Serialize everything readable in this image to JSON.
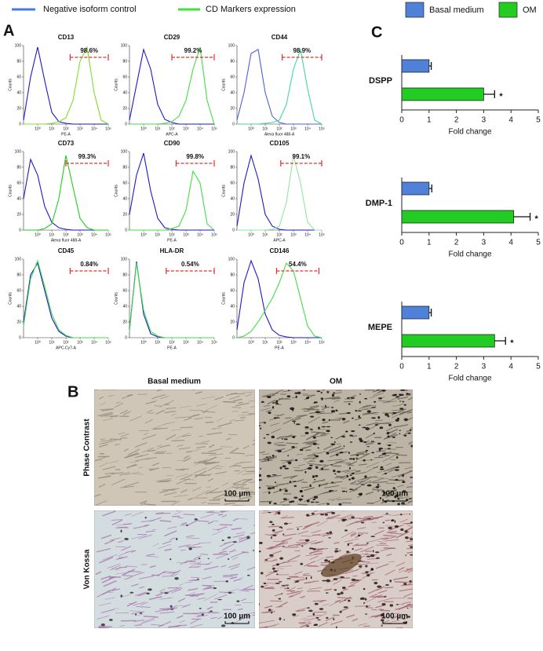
{
  "legends": [
    {
      "items": [
        {
          "label": "Negative isoform control",
          "color": "#4a7ae0"
        },
        {
          "label": "CD Markers expression",
          "color": "#44dd44"
        }
      ]
    },
    {
      "items": [
        {
          "label": "Basal medium",
          "color": "#4f81d9"
        },
        {
          "label": "OM",
          "color": "#22cc22"
        }
      ]
    }
  ],
  "panel_labels": [
    "A",
    "B",
    "C"
  ],
  "chart_data": [
    {
      "type": "line",
      "title": "CD13",
      "xlabel": "PE-A",
      "ylabel": "Counts",
      "annotation": "98.6%",
      "gate": {
        "x": [
          2.3,
          5
        ],
        "y": 85
      },
      "x": [
        -1,
        -0.5,
        0,
        0.5,
        1,
        1.5,
        2,
        2.5,
        3,
        3.5,
        4,
        4.5,
        5
      ],
      "series": [
        {
          "color": "#1a1acc",
          "values": [
            5,
            60,
            98,
            55,
            15,
            3,
            1,
            0,
            0,
            0,
            0,
            0,
            0
          ]
        },
        {
          "color": "#7fe02a",
          "values": [
            0,
            0,
            0,
            0,
            1,
            3,
            8,
            30,
            80,
            98,
            40,
            5,
            0
          ]
        }
      ],
      "xlim": [
        -1,
        5
      ],
      "xticks": [
        {
          "value": 0,
          "label": "10⁰"
        },
        {
          "value": 1,
          "label": "10¹"
        },
        {
          "value": 2,
          "label": "10²"
        },
        {
          "value": 3,
          "label": "10³"
        },
        {
          "value": 4,
          "label": "10⁴"
        },
        {
          "value": 5,
          "label": "10⁵"
        }
      ],
      "ylim": [
        0,
        100
      ],
      "yticks": [
        0,
        20,
        40,
        60,
        80,
        100
      ]
    },
    {
      "type": "line",
      "title": "CD29",
      "xlabel": "APC-A",
      "ylabel": "Counts",
      "annotation": "99.2%",
      "gate": {
        "x": [
          2,
          5
        ],
        "y": 85
      },
      "x": [
        -1,
        -0.5,
        0,
        0.5,
        1,
        1.5,
        2,
        2.5,
        3,
        3.5,
        4,
        4.5,
        5
      ],
      "series": [
        {
          "color": "#1a1acc",
          "values": [
            5,
            50,
            95,
            70,
            25,
            6,
            2,
            0,
            0,
            0,
            0,
            0,
            0
          ]
        },
        {
          "color": "#44dd44",
          "values": [
            0,
            0,
            0,
            0,
            0,
            1,
            3,
            10,
            30,
            70,
            98,
            30,
            0
          ]
        }
      ],
      "xlim": [
        -1,
        5
      ],
      "xticks": [
        {
          "value": 0,
          "label": "10⁰"
        },
        {
          "value": 1,
          "label": "10¹"
        },
        {
          "value": 2,
          "label": "10²"
        },
        {
          "value": 3,
          "label": "10³"
        },
        {
          "value": 4,
          "label": "10⁴"
        },
        {
          "value": 5,
          "label": "10⁵"
        }
      ],
      "ylim": [
        0,
        100
      ],
      "yticks": [
        0,
        20,
        40,
        60,
        80,
        100
      ]
    },
    {
      "type": "line",
      "title": "CD44",
      "xlabel": "Alexa fluor 488-A",
      "ylabel": "Counts",
      "annotation": "98.9%",
      "gate": {
        "x": [
          2.2,
          5
        ],
        "y": 85
      },
      "x": [
        -1,
        -0.5,
        0,
        0.5,
        1,
        1.5,
        2,
        2.5,
        3,
        3.5,
        4,
        4.5,
        5
      ],
      "series": [
        {
          "color": "#5060d8",
          "values": [
            5,
            40,
            90,
            95,
            40,
            10,
            2,
            0,
            0,
            0,
            0,
            0,
            0
          ]
        },
        {
          "color": "#3fd9a0",
          "values": [
            0,
            0,
            0,
            0,
            1,
            2,
            5,
            25,
            70,
            95,
            45,
            5,
            0
          ]
        }
      ],
      "xlim": [
        -1,
        5
      ],
      "xticks": [
        {
          "value": 0,
          "label": "10⁰"
        },
        {
          "value": 1,
          "label": "10¹"
        },
        {
          "value": 2,
          "label": "10²"
        },
        {
          "value": 3,
          "label": "10³"
        },
        {
          "value": 4,
          "label": "10⁴"
        },
        {
          "value": 5,
          "label": "10⁵"
        }
      ],
      "ylim": [
        0,
        100
      ],
      "yticks": [
        0,
        20,
        40,
        60,
        80,
        100
      ]
    },
    {
      "type": "line",
      "title": "CD73",
      "xlabel": "Alexa fluor 488-A",
      "ylabel": "Counts",
      "annotation": "99.3%",
      "gate": {
        "x": [
          2,
          5
        ],
        "y": 85
      },
      "x": [
        -1,
        -0.5,
        0,
        0.5,
        1,
        1.5,
        2,
        2.5,
        3,
        3.5,
        4,
        4.5,
        5
      ],
      "series": [
        {
          "color": "#1a1acc",
          "values": [
            40,
            90,
            70,
            30,
            10,
            3,
            1,
            0,
            0,
            0,
            0,
            0,
            0
          ]
        },
        {
          "color": "#22cc22",
          "values": [
            0,
            0,
            0,
            2,
            8,
            40,
            95,
            55,
            15,
            3,
            0,
            0,
            0
          ]
        }
      ],
      "xlim": [
        -1,
        5
      ],
      "xticks": [
        {
          "value": 0,
          "label": "10⁰"
        },
        {
          "value": 1,
          "label": "10¹"
        },
        {
          "value": 2,
          "label": "10²"
        },
        {
          "value": 3,
          "label": "10³"
        },
        {
          "value": 4,
          "label": "10⁴"
        },
        {
          "value": 5,
          "label": "10⁵"
        }
      ],
      "ylim": [
        0,
        100
      ],
      "yticks": [
        0,
        20,
        40,
        60,
        80,
        100
      ]
    },
    {
      "type": "line",
      "title": "CD90",
      "xlabel": "PE-A",
      "ylabel": "Counts",
      "annotation": "99.8%",
      "gate": {
        "x": [
          2.3,
          5
        ],
        "y": 85
      },
      "x": [
        -1,
        -0.5,
        0,
        0.5,
        1,
        1.5,
        2,
        2.5,
        3,
        3.5,
        4,
        4.5,
        5
      ],
      "series": [
        {
          "color": "#1a1acc",
          "values": [
            20,
            70,
            98,
            50,
            15,
            3,
            1,
            0,
            0,
            0,
            0,
            0,
            0
          ]
        },
        {
          "color": "#44dd44",
          "values": [
            0,
            0,
            0,
            0,
            0,
            0,
            2,
            5,
            25,
            75,
            60,
            8,
            0
          ]
        }
      ],
      "xlim": [
        -1,
        5
      ],
      "xticks": [
        {
          "value": 0,
          "label": "10⁰"
        },
        {
          "value": 1,
          "label": "10¹"
        },
        {
          "value": 2,
          "label": "10²"
        },
        {
          "value": 3,
          "label": "10³"
        },
        {
          "value": 4,
          "label": "10⁴"
        },
        {
          "value": 5,
          "label": "10⁵"
        }
      ],
      "ylim": [
        0,
        100
      ],
      "yticks": [
        0,
        20,
        40,
        60,
        80,
        100
      ]
    },
    {
      "type": "line",
      "title": "CD105",
      "xlabel": "APC-A",
      "ylabel": "Counts",
      "annotation": "99.1%",
      "gate": {
        "x": [
          2.1,
          5
        ],
        "y": 85
      },
      "x": [
        -1,
        -0.5,
        0,
        0.5,
        1,
        1.5,
        2,
        2.5,
        3,
        3.5,
        4,
        4.5,
        5
      ],
      "series": [
        {
          "color": "#1a1acc",
          "values": [
            5,
            60,
            95,
            65,
            20,
            5,
            1,
            0,
            0,
            0,
            0,
            0,
            0
          ]
        },
        {
          "color": "#8fe8a0",
          "values": [
            0,
            0,
            0,
            0,
            0,
            1,
            5,
            35,
            95,
            60,
            10,
            0,
            0
          ]
        }
      ],
      "xlim": [
        -1,
        5
      ],
      "xticks": [
        {
          "value": 0,
          "label": "10⁰"
        },
        {
          "value": 1,
          "label": "10¹"
        },
        {
          "value": 2,
          "label": "10²"
        },
        {
          "value": 3,
          "label": "10³"
        },
        {
          "value": 4,
          "label": "10⁴"
        },
        {
          "value": 5,
          "label": "10⁵"
        }
      ],
      "ylim": [
        0,
        100
      ],
      "yticks": [
        0,
        20,
        40,
        60,
        80,
        100
      ]
    },
    {
      "type": "line",
      "title": "CD45",
      "xlabel": "APC-Cy7-A",
      "ylabel": "Counts",
      "annotation": "0.84%",
      "gate": {
        "x": [
          2.3,
          5
        ],
        "y": 85
      },
      "x": [
        -1,
        -0.5,
        0,
        0.5,
        1,
        1.5,
        2,
        2.5,
        3,
        3.5,
        4,
        4.5,
        5
      ],
      "series": [
        {
          "color": "#1a1acc",
          "values": [
            20,
            80,
            95,
            60,
            25,
            8,
            2,
            0,
            0,
            0,
            0,
            0,
            0
          ]
        },
        {
          "color": "#44dd44",
          "values": [
            15,
            75,
            98,
            65,
            30,
            10,
            3,
            0,
            0,
            0,
            0,
            0,
            0
          ]
        }
      ],
      "xlim": [
        -1,
        5
      ],
      "xticks": [
        {
          "value": 0,
          "label": "10⁰"
        },
        {
          "value": 1,
          "label": "10¹"
        },
        {
          "value": 2,
          "label": "10²"
        },
        {
          "value": 3,
          "label": "10³"
        },
        {
          "value": 4,
          "label": "10⁴"
        },
        {
          "value": 5,
          "label": "10⁵"
        }
      ],
      "ylim": [
        0,
        100
      ],
      "yticks": [
        0,
        20,
        40,
        60,
        80,
        100
      ]
    },
    {
      "type": "line",
      "title": "HLA-DR",
      "xlabel": "PE-A",
      "ylabel": "Counts",
      "annotation": "0.54%",
      "gate": {
        "x": [
          1.6,
          5
        ],
        "y": 85
      },
      "x": [
        -1,
        -0.5,
        0,
        0.5,
        1,
        1.5,
        2,
        2.5,
        3,
        3.5,
        4,
        4.5,
        5
      ],
      "series": [
        {
          "color": "#1a1acc",
          "values": [
            10,
            97,
            30,
            5,
            1,
            0,
            0,
            0,
            0,
            0,
            0,
            0,
            0
          ]
        },
        {
          "color": "#44dd44",
          "values": [
            8,
            95,
            35,
            8,
            2,
            0,
            0,
            0,
            0,
            0,
            0,
            0,
            0
          ]
        }
      ],
      "xlim": [
        -1,
        5
      ],
      "xticks": [
        {
          "value": 0,
          "label": "10⁰"
        },
        {
          "value": 1,
          "label": "10¹"
        },
        {
          "value": 2,
          "label": "10²"
        },
        {
          "value": 3,
          "label": "10³"
        },
        {
          "value": 4,
          "label": "10⁴"
        },
        {
          "value": 5,
          "label": "10⁵"
        }
      ],
      "ylim": [
        0,
        100
      ],
      "yticks": [
        0,
        20,
        40,
        60,
        80,
        100
      ]
    },
    {
      "type": "line",
      "title": "CD146",
      "xlabel": "PE-A",
      "ylabel": "Counts",
      "annotation": "54.4%",
      "gate": {
        "x": [
          1.8,
          4.8
        ],
        "y": 85
      },
      "x": [
        -1,
        -0.5,
        0,
        0.5,
        1,
        1.5,
        2,
        2.5,
        3,
        3.5,
        4,
        4.5,
        5
      ],
      "series": [
        {
          "color": "#1a1acc",
          "values": [
            10,
            70,
            98,
            75,
            30,
            10,
            3,
            1,
            0,
            0,
            0,
            0,
            0
          ]
        },
        {
          "color": "#44dd44",
          "values": [
            0,
            2,
            8,
            20,
            35,
            50,
            70,
            95,
            85,
            50,
            15,
            2,
            0
          ]
        }
      ],
      "xlim": [
        -1,
        5
      ],
      "xticks": [
        {
          "value": 0,
          "label": "10⁰"
        },
        {
          "value": 1,
          "label": "10¹"
        },
        {
          "value": 2,
          "label": "10²"
        },
        {
          "value": 3,
          "label": "10³"
        },
        {
          "value": 4,
          "label": "10⁴"
        },
        {
          "value": 5,
          "label": "10⁵"
        }
      ],
      "ylim": [
        0,
        100
      ],
      "yticks": [
        0,
        20,
        40,
        60,
        80,
        100
      ]
    },
    {
      "type": "hbar",
      "category": "DSPP",
      "xlabel": "Fold change",
      "annotation": "*",
      "series": [
        {
          "color": "#4f81d9",
          "values": [
            1
          ],
          "errors": [
            0.08
          ]
        },
        {
          "color": "#22cc22",
          "values": [
            3.0
          ],
          "errors": [
            0.4
          ]
        }
      ],
      "xlim": [
        0,
        5
      ],
      "xticks": [
        0,
        1,
        2,
        3,
        4,
        5
      ]
    },
    {
      "type": "hbar",
      "category": "DMP-1",
      "xlabel": "Fold change",
      "annotation": "*",
      "series": [
        {
          "color": "#4f81d9",
          "values": [
            1
          ],
          "errors": [
            0.1
          ]
        },
        {
          "color": "#22cc22",
          "values": [
            4.1
          ],
          "errors": [
            0.6
          ]
        }
      ],
      "xlim": [
        0,
        5
      ],
      "xticks": [
        0,
        1,
        2,
        3,
        4,
        5
      ]
    },
    {
      "type": "hbar",
      "category": "MEPE",
      "xlabel": "Fold change",
      "annotation": "*",
      "series": [
        {
          "color": "#4f81d9",
          "values": [
            1
          ],
          "errors": [
            0.08
          ]
        },
        {
          "color": "#22cc22",
          "values": [
            3.4
          ],
          "errors": [
            0.4
          ]
        }
      ],
      "xlim": [
        0,
        5
      ],
      "xticks": [
        0,
        1,
        2,
        3,
        4,
        5
      ]
    }
  ],
  "panel_b": {
    "columns": [
      "Basal medium",
      "OM"
    ],
    "rows": [
      "Phase Contrast",
      "Von Kossa"
    ],
    "scale_bars": [
      "100 µm",
      "100 µm",
      "100 µm",
      "100 µm"
    ]
  }
}
